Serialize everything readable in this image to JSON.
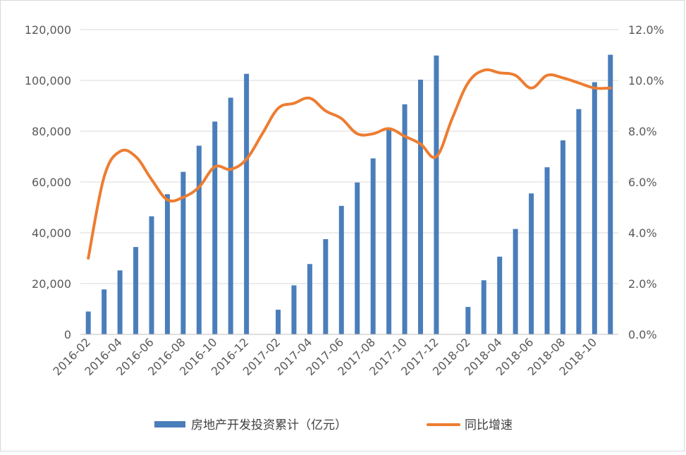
{
  "chart_data": {
    "type": "bar",
    "title": "",
    "x": [
      "2016-02",
      "2016-03",
      "2016-04",
      "2016-05",
      "2016-06",
      "2016-07",
      "2016-08",
      "2016-09",
      "2016-10",
      "2016-11",
      "2016-12",
      "2017-01",
      "2017-02",
      "2017-03",
      "2017-04",
      "2017-05",
      "2017-06",
      "2017-07",
      "2017-08",
      "2017-09",
      "2017-10",
      "2017-11",
      "2017-12",
      "2018-01",
      "2018-02",
      "2018-03",
      "2018-04",
      "2018-05",
      "2018-06",
      "2018-07",
      "2018-08",
      "2018-09",
      "2018-10",
      "2018-11"
    ],
    "x_tick_labels": [
      "2016-02",
      "2016-04",
      "2016-06",
      "2016-08",
      "2016-10",
      "2016-12",
      "2017-02",
      "2017-04",
      "2017-06",
      "2017-08",
      "2017-10",
      "2017-12",
      "2018-02",
      "2018-04",
      "2018-06",
      "2018-08",
      "2018-10"
    ],
    "series": [
      {
        "name": "房地产开发投资累计（亿元）",
        "type": "bar",
        "axis": "left",
        "color": "#4a7ebb",
        "values": [
          9000,
          17700,
          25200,
          34400,
          46500,
          55200,
          64000,
          74300,
          83800,
          93200,
          102600,
          null,
          9700,
          19300,
          27700,
          37500,
          50600,
          59800,
          69300,
          80600,
          90600,
          100300,
          109800,
          null,
          10800,
          21300,
          30600,
          41500,
          55500,
          65800,
          76400,
          88700,
          99300,
          110100
        ]
      },
      {
        "name": "同比增速",
        "type": "line",
        "axis": "right",
        "color": "#ed7d31",
        "values": [
          3.0,
          6.2,
          7.2,
          7.0,
          6.1,
          5.3,
          5.4,
          5.8,
          6.6,
          6.5,
          6.9,
          7.9,
          8.9,
          9.1,
          9.3,
          8.8,
          8.5,
          7.9,
          7.9,
          8.1,
          7.8,
          7.5,
          7.0,
          8.5,
          9.9,
          10.4,
          10.3,
          10.2,
          9.7,
          10.2,
          10.1,
          9.9,
          9.7,
          9.7
        ]
      }
    ],
    "y_left": {
      "ylim": [
        0,
        120000
      ],
      "ticks": [
        "0",
        "20,000",
        "40,000",
        "60,000",
        "80,000",
        "100,000",
        "120,000"
      ]
    },
    "y_right": {
      "ylim": [
        0,
        12
      ],
      "ticks": [
        "0.0%",
        "2.0%",
        "4.0%",
        "6.0%",
        "8.0%",
        "10.0%",
        "12.0%"
      ]
    },
    "grid": true,
    "legend_position": "bottom"
  }
}
